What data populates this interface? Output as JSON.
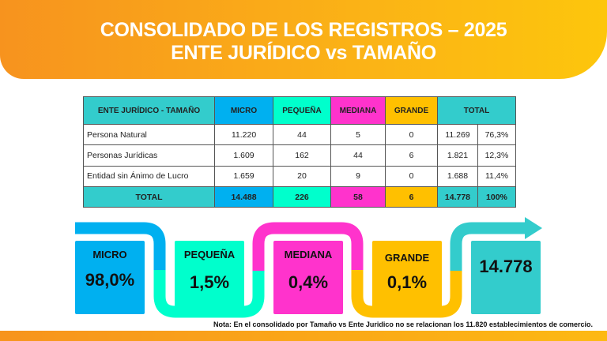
{
  "title": {
    "line1": "CONSOLIDADO DE LOS REGISTROS – 2025",
    "line2": "ENTE JURÍDICO vs TAMAÑO"
  },
  "table": {
    "headers": [
      "ENTE JURÍDICO - TAMAÑO",
      "MICRO",
      "PEQUEÑA",
      "MEDIANA",
      "GRANDE",
      "TOTAL"
    ],
    "rows": [
      {
        "label": "Persona Natural",
        "micro": "11.220",
        "pequena": "44",
        "mediana": "5",
        "grande": "0",
        "total": "11.269",
        "pct": "76,3%"
      },
      {
        "label": "Personas Jurídicas",
        "micro": "1.609",
        "pequena": "162",
        "mediana": "44",
        "grande": "6",
        "total": "1.821",
        "pct": "12,3%"
      },
      {
        "label": "Entidad sin Ánimo de Lucro",
        "micro": "1.659",
        "pequena": "20",
        "mediana": "9",
        "grande": "0",
        "total": "1.688",
        "pct": "11,4%"
      }
    ],
    "total": {
      "label": "TOTAL",
      "micro": "14.488",
      "pequena": "226",
      "mediana": "58",
      "grande": "6",
      "total": "14.778",
      "pct": "100%"
    }
  },
  "flow": {
    "micro": {
      "label": "MICRO",
      "value": "98,0%"
    },
    "pequena": {
      "label": "PEQUEÑA",
      "value": "1,5%"
    },
    "mediana": {
      "label": "MEDIANA",
      "value": "0,4%"
    },
    "grande": {
      "label": "GRANDE",
      "value": "0,1%"
    },
    "total": {
      "value": "14.778"
    }
  },
  "note": "Nota: En el consolidado por Tamaño vs Ente Juridico no se relacionan los 11.820 establecimientos de comercio.",
  "colors": {
    "micro": "#00b0f0",
    "pequena": "#00ffcc",
    "mediana": "#ff33cc",
    "grande": "#ffc000",
    "total": "#33cccc",
    "banner": "#f7931e"
  }
}
